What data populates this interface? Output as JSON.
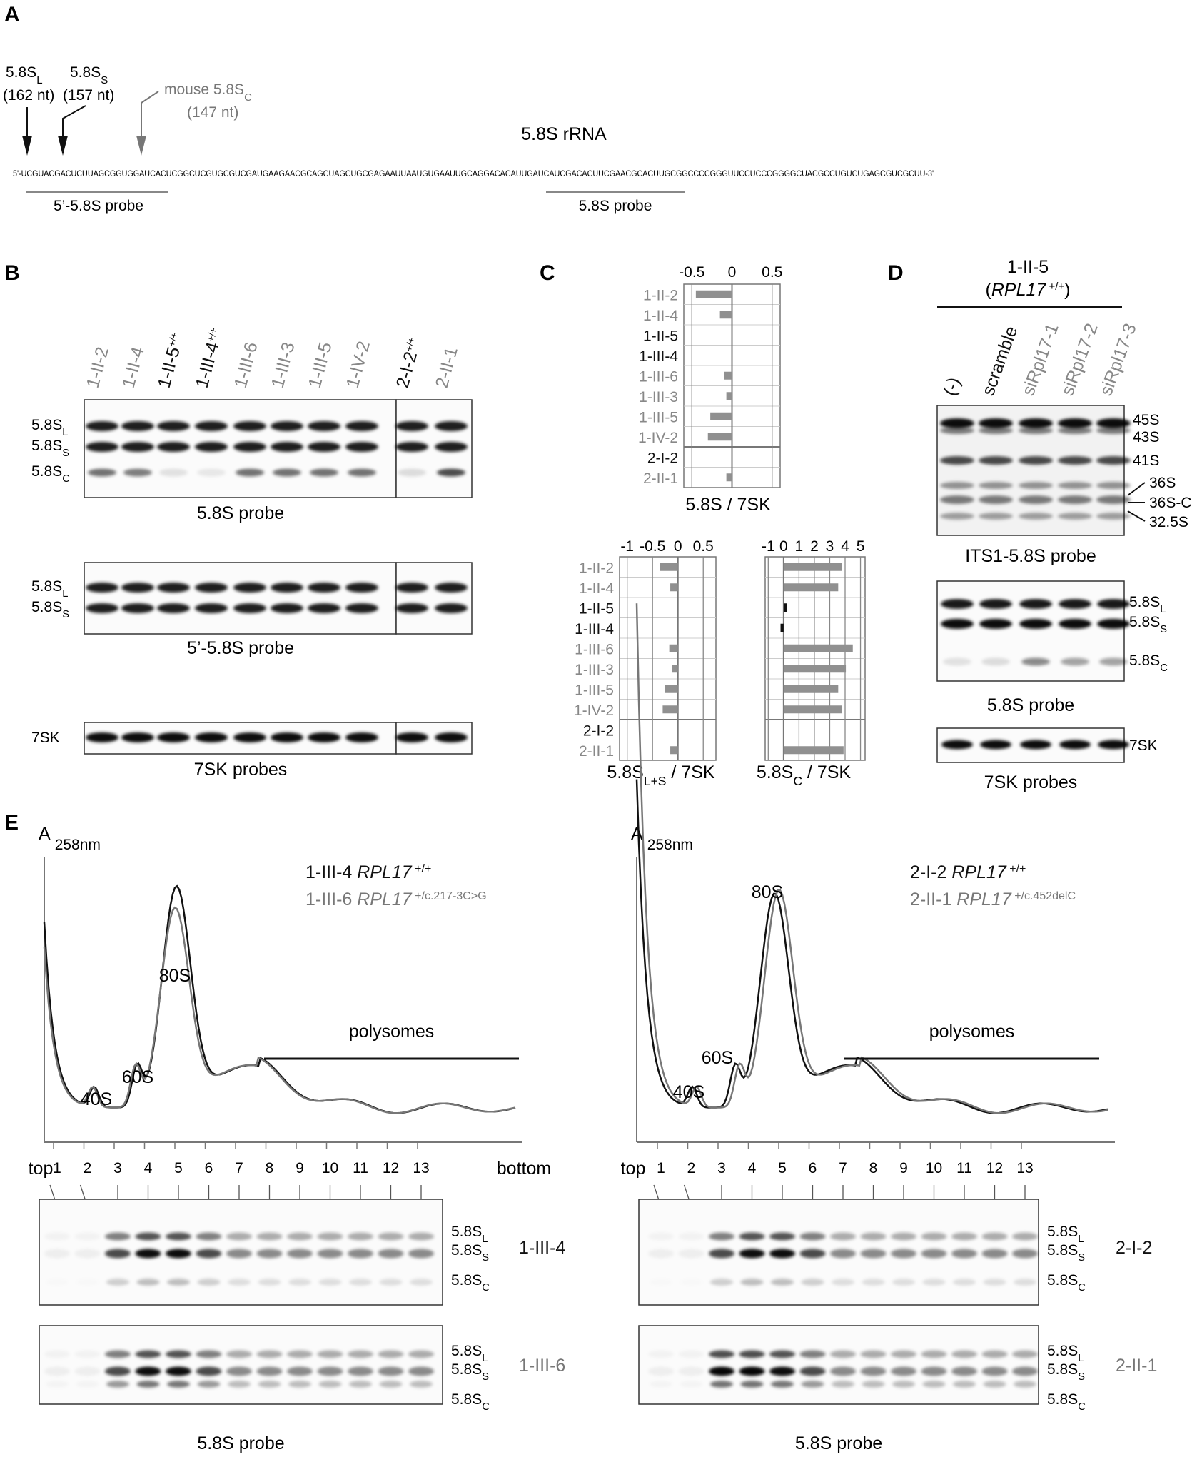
{
  "panel_letters": [
    "A",
    "B",
    "C",
    "D",
    "E"
  ],
  "panel_a": {
    "title": "5.8S rRNA",
    "sequence": "5'-UCGUACGACUCUUAGCGGUGGAUCACUCGGCUCGUGCGUCGAUGAAGAACGCAGCUAGCUGCGAGAAUUAAUGUGAAUUGCAGGACACAUUGAUCAUCGACACUUCGAACGCACUUGCGGCCCCGGGUUCCUCCCGGGGCUACGCCUGUCUGAGCGUCGCUU-3'",
    "arrows": [
      {
        "name": "5.8S",
        "sub": "L",
        "size": "(162 nt)",
        "color": "#111111"
      },
      {
        "name": "5.8S",
        "sub": "S",
        "size": "(157 nt)",
        "color": "#111111"
      },
      {
        "name": "mouse 5.8S",
        "sub": "C",
        "size": "(147 nt)",
        "color": "#777777"
      }
    ],
    "probes": [
      "5’-5.8S probe",
      "5.8S probe"
    ]
  },
  "panel_b": {
    "lanes": [
      {
        "id": "1-II-2",
        "sup": "",
        "color": "#888888"
      },
      {
        "id": "1-II-4",
        "sup": "",
        "color": "#888888"
      },
      {
        "id": "1-II-5",
        "sup": "+/+",
        "color": "#111111"
      },
      {
        "id": "1-III-4",
        "sup": "+/+",
        "color": "#111111"
      },
      {
        "id": "1-III-6",
        "sup": "",
        "color": "#888888"
      },
      {
        "id": "1-III-3",
        "sup": "",
        "color": "#888888"
      },
      {
        "id": "1-III-5",
        "sup": "",
        "color": "#888888"
      },
      {
        "id": "1-IV-2",
        "sup": "",
        "color": "#888888"
      },
      {
        "id": "2-I-2",
        "sup": "+/+",
        "color": "#111111"
      },
      {
        "id": "2-II-1",
        "sup": "",
        "color": "#888888"
      }
    ],
    "blots": [
      {
        "probe": "5.8S probe",
        "bands": [
          "5.8S|L",
          "5.8S|S",
          "5.8S|C"
        ]
      },
      {
        "probe": "5’-5.8S probe",
        "bands": [
          "5.8S|L",
          "5.8S|S"
        ]
      },
      {
        "probe": "7SK probes",
        "bands": [
          "7SK"
        ]
      }
    ]
  },
  "chart_data": [
    {
      "type": "bar",
      "orientation": "horizontal",
      "title": "5.8S / 7SK",
      "categories": [
        "1-II-2",
        "1-II-4",
        "1-II-5",
        "1-III-4",
        "1-III-6",
        "1-III-3",
        "1-III-5",
        "1-IV-2",
        "2-I-2",
        "2-II-1"
      ],
      "values": [
        -0.45,
        -0.15,
        0.0,
        0.0,
        -0.1,
        -0.07,
        -0.27,
        -0.3,
        0.0,
        -0.07
      ],
      "xlim": [
        -0.6,
        0.6
      ],
      "xticks": [
        -0.5,
        0,
        0.5
      ],
      "bar_color": "#909090"
    },
    {
      "type": "bar",
      "orientation": "horizontal",
      "title": "5.8S|L+S| / 7SK",
      "categories": [
        "1-II-2",
        "1-II-4",
        "1-II-5",
        "1-III-4",
        "1-III-6",
        "1-III-3",
        "1-III-5",
        "1-IV-2",
        "2-I-2",
        "2-II-1"
      ],
      "values": [
        -0.35,
        -0.15,
        0.0,
        0.0,
        -0.17,
        -0.12,
        -0.25,
        -0.3,
        0.0,
        -0.15
      ],
      "xlim": [
        -1.15,
        0.75
      ],
      "xticks": [
        -1.0,
        -0.5,
        0,
        0.5
      ],
      "bar_color": "#909090"
    },
    {
      "type": "bar",
      "orientation": "horizontal",
      "title": "5.8S|C| / 7SK",
      "categories": [
        "1-II-2",
        "1-II-4",
        "1-II-5",
        "1-III-4",
        "1-III-6",
        "1-III-3",
        "1-III-5",
        "1-IV-2",
        "2-I-2",
        "2-II-1"
      ],
      "values": [
        3.8,
        3.55,
        0.22,
        -0.2,
        4.5,
        4.05,
        3.55,
        3.8,
        0.0,
        3.9
      ],
      "bar_colors": [
        "#909090",
        "#909090",
        "#111111",
        "#111111",
        "#909090",
        "#909090",
        "#909090",
        "#909090",
        "#909090",
        "#909090"
      ],
      "xlim": [
        -1.2,
        5.3
      ],
      "xticks": [
        -1,
        0,
        1,
        2,
        3,
        4,
        5
      ]
    }
  ],
  "panel_d": {
    "header": "1-II-5",
    "genotype": "RPL17",
    "genotype_sup": "+/+",
    "lanes": [
      {
        "label": "(-)",
        "color": "#111111"
      },
      {
        "label": "scramble",
        "color": "#111111"
      },
      {
        "label": "siRpl17-1",
        "color": "#888888"
      },
      {
        "label": "siRpl17-2",
        "color": "#888888"
      },
      {
        "label": "siRpl17-3",
        "color": "#888888"
      }
    ],
    "blot1": {
      "probe": "ITS1-5.8S probe",
      "bands": [
        "45S",
        "43S",
        "41S",
        "36S",
        "36S-C",
        "32.5S"
      ]
    },
    "blot2": {
      "probe": "5.8S probe",
      "bands": [
        "5.8S|L",
        "5.8S|S",
        "5.8S|C"
      ]
    },
    "blot3": {
      "probe": "7SK probes",
      "bands": [
        "7SK"
      ]
    }
  },
  "panel_e": {
    "profiles": [
      {
        "ylabel": "A",
        "ylabel_sub": "258nm",
        "legend": [
          {
            "sample": "1-III-4",
            "gene": "RPL17",
            "sup": "+/+",
            "color": "#111111"
          },
          {
            "sample": "1-III-6",
            "gene": "RPL17",
            "sup": "+/c.217-3C>G",
            "color": "#777777"
          }
        ],
        "peaks": [
          "40S",
          "60S",
          "80S"
        ],
        "polysomes": "polysomes",
        "fractions": [
          "1",
          "2",
          "3",
          "4",
          "5",
          "6",
          "7",
          "8",
          "9",
          "10",
          "11",
          "12",
          "13"
        ],
        "top": "top",
        "bottom": "bottom",
        "blots": [
          {
            "sample": "1-III-4",
            "color": "#111111"
          },
          {
            "sample": "1-III-6",
            "color": "#777777"
          }
        ],
        "band_labels": [
          "5.8S|L",
          "5.8S|S",
          "5.8S|C"
        ],
        "probe": "5.8S probe"
      },
      {
        "ylabel": "A",
        "ylabel_sub": "258nm",
        "legend": [
          {
            "sample": "2-I-2",
            "gene": "RPL17",
            "sup": "+/+",
            "color": "#111111"
          },
          {
            "sample": "2-II-1",
            "gene": "RPL17",
            "sup": "+/c.452delC",
            "color": "#777777"
          }
        ],
        "peaks": [
          "40S",
          "60S",
          "80S"
        ],
        "polysomes": "polysomes",
        "fractions": [
          "1",
          "2",
          "3",
          "4",
          "5",
          "6",
          "7",
          "8",
          "9",
          "10",
          "11",
          "12",
          "13"
        ],
        "top": "top",
        "bottom": "",
        "blots": [
          {
            "sample": "2-I-2",
            "color": "#111111"
          },
          {
            "sample": "2-II-1",
            "color": "#777777"
          }
        ],
        "band_labels": [
          "5.8S|L",
          "5.8S|S",
          "5.8S|C"
        ],
        "probe": "5.8S probe"
      }
    ]
  }
}
